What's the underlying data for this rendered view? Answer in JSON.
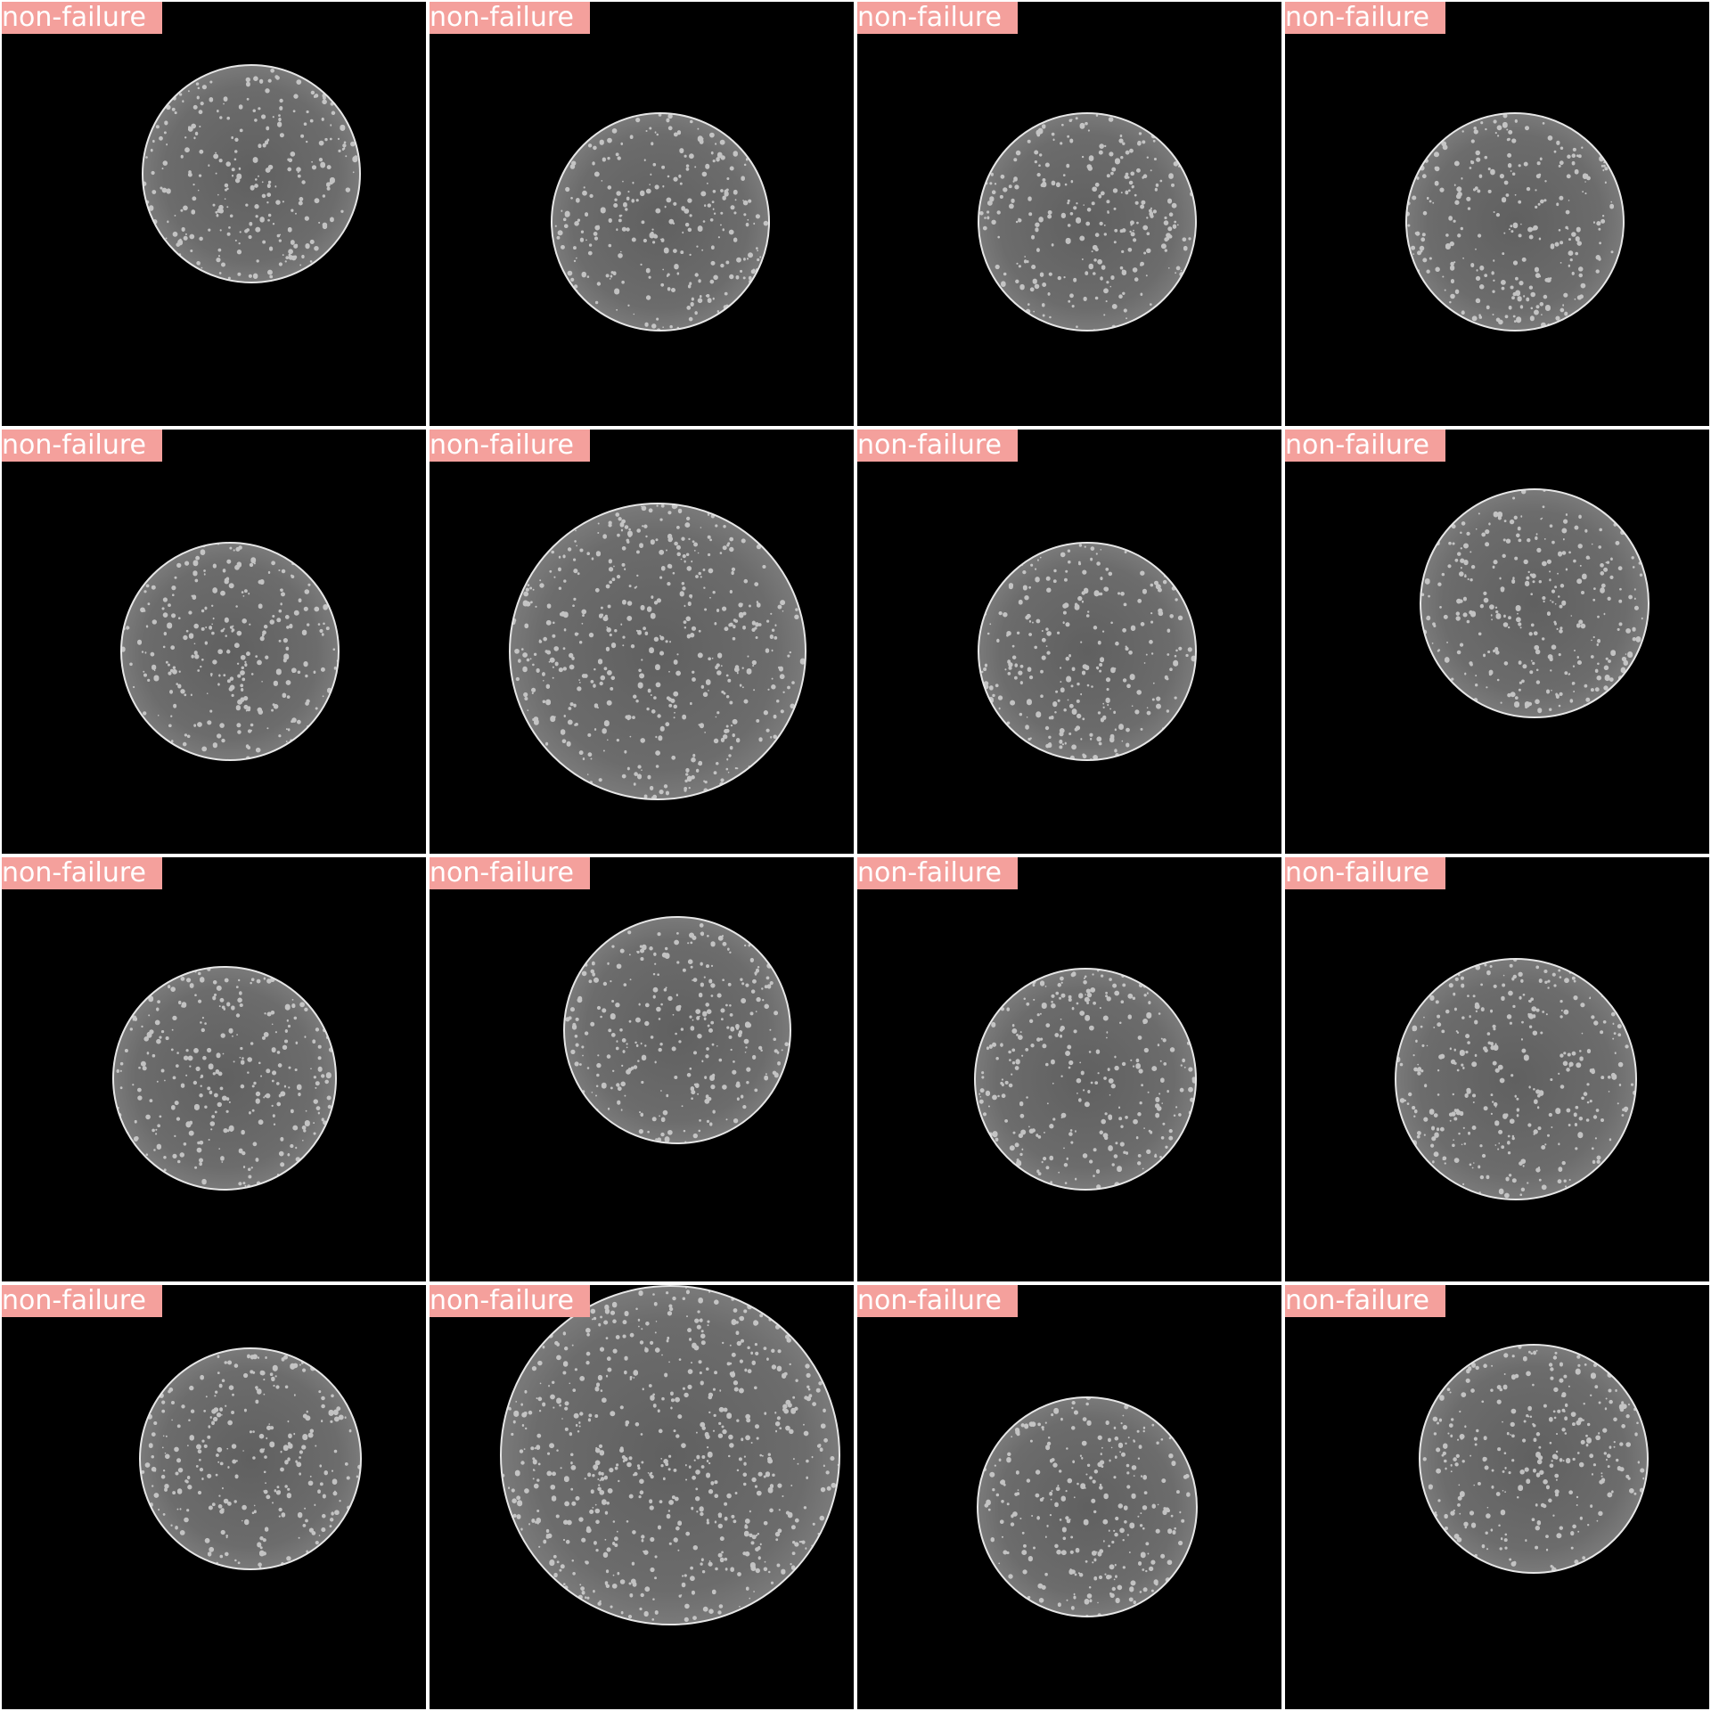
{
  "colors": {
    "tile_background": "#000000",
    "label_background": "#f4a09c",
    "label_text": "#ffffff",
    "specimen_fill": "#6b6b6b",
    "specimen_rim": "#e6e6e6",
    "grid_lines": "#ffffff"
  },
  "tiles": [
    {
      "label": "non-failure"
    },
    {
      "label": "non-failure"
    },
    {
      "label": "non-failure"
    },
    {
      "label": "non-failure"
    },
    {
      "label": "non-failure"
    },
    {
      "label": "non-failure"
    },
    {
      "label": "non-failure"
    },
    {
      "label": "non-failure"
    },
    {
      "label": "non-failure"
    },
    {
      "label": "non-failure"
    },
    {
      "label": "non-failure"
    },
    {
      "label": "non-failure"
    },
    {
      "label": "non-failure"
    },
    {
      "label": "non-failure"
    },
    {
      "label": "non-failure"
    },
    {
      "label": "non-failure"
    }
  ]
}
